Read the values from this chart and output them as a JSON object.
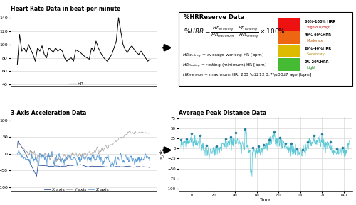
{
  "hr_title": "Heart Rate Data in beat-per-minute",
  "hr_data": [
    70,
    115,
    90,
    95,
    88,
    100,
    92,
    85,
    75,
    95,
    90,
    98,
    85,
    80,
    95,
    92,
    88,
    95,
    90,
    93,
    90,
    80,
    75,
    78,
    80,
    75,
    92,
    90,
    88,
    85,
    82,
    80,
    78,
    95,
    90,
    105,
    95,
    88,
    82,
    78,
    75,
    80,
    85,
    95,
    105,
    140,
    120,
    100,
    92,
    88,
    95,
    98,
    92,
    88,
    85,
    90,
    85,
    80,
    75,
    78
  ],
  "hr_yticks": [
    40,
    60,
    80,
    100,
    120,
    140
  ],
  "hr_color": "#000000",
  "hr_legend": "HR",
  "hrr_title": "%HRReserve Data",
  "hrr_box_colors": [
    "#ee1111",
    "#ee6611",
    "#ddbb00",
    "#44bb33"
  ],
  "hrr_box_top_labels": [
    "60%-100% HRR",
    "40%-60%HRR",
    "20%-40%HRR",
    "0%-20%HRR"
  ],
  "hrr_box_sub_labels": [
    ": Vigorous/High",
    ": Moderate",
    ": Sedentary",
    ": Light"
  ],
  "hrr_box_sub_colors": [
    "#cc0000",
    "#bb5500",
    "#aa8800",
    "#007700"
  ],
  "acc_title": "3-Axis Acceleration Data",
  "acc_x_color": "#1a3f8f",
  "acc_y_color": "#aaaaaa",
  "acc_z_color": "#5b9bd5",
  "apd_title": "Average Peak Distance Data",
  "apd_xlabel": "Time",
  "apd_ylabel": "s_pk",
  "apd_color": "#5bc8d5"
}
